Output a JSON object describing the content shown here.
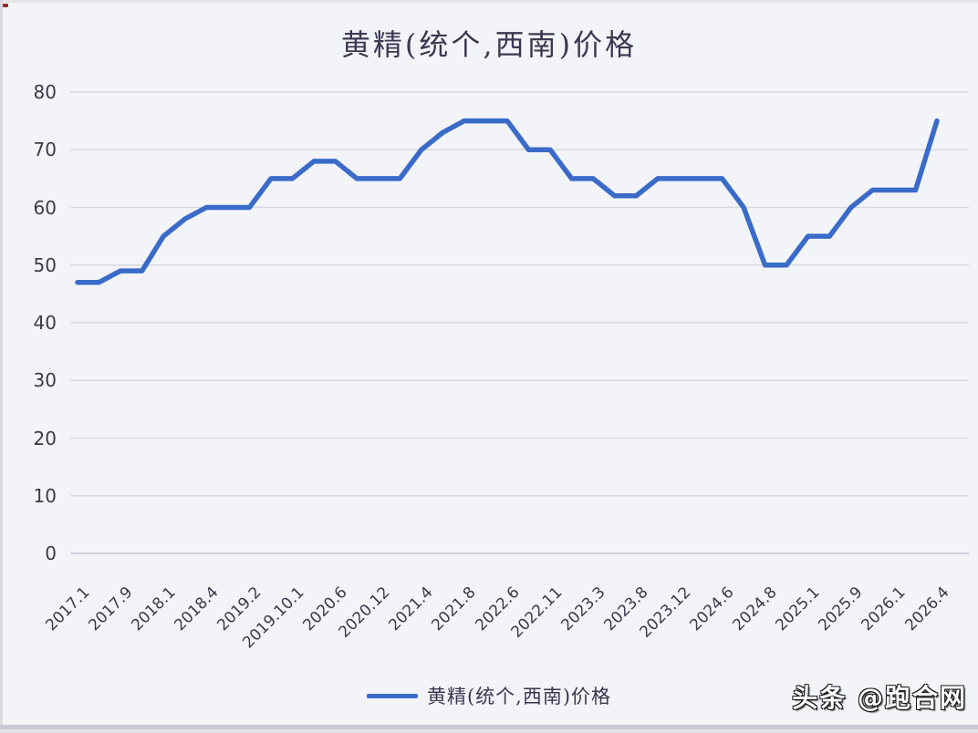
{
  "title": "黄精(统个,西南)价格",
  "legend": {
    "label": "黄精(统个,西南)价格"
  },
  "watermark": "头条 @跑合网",
  "colors": {
    "line": "#3A6BC9",
    "grid": "#D8DAE2",
    "grid_zero": "#C6C9D4",
    "title": "#3D3751",
    "axis_text": "#3A3A4A",
    "legend_text": "#3B3650",
    "background": "#F3F4F8"
  },
  "chart_data": {
    "type": "line",
    "title": "黄精(统个,西南)价格",
    "series_name": "黄精(统个,西南)价格",
    "x_tick_labels": [
      "2017.1",
      "2017.9",
      "2018.1",
      "2018.4",
      "2019.2",
      "2019.10.1",
      "2020.6",
      "2020.12",
      "2021.4",
      "2021.8",
      "2022.6",
      "2022.11",
      "2023.3",
      "2023.8",
      "2023.12",
      "2024.6",
      "2024.8",
      "2025.1",
      "2025.9",
      "2026.1",
      "2026.4"
    ],
    "points_per_tick": 2,
    "values": [
      47,
      47,
      49,
      49,
      55,
      58,
      60,
      60,
      60,
      65,
      65,
      68,
      68,
      65,
      65,
      65,
      70,
      73,
      75,
      75,
      75,
      70,
      70,
      65,
      65,
      62,
      62,
      65,
      65,
      65,
      65,
      60,
      50,
      50,
      55,
      55,
      60,
      63,
      63,
      63,
      75
    ],
    "labeled_points": {
      "2017.1": 47,
      "2017.9": 49,
      "2018.1": 55,
      "2018.4": 60,
      "2019.2": 60,
      "2019.10.1": 65,
      "2020.6": 68,
      "2020.12": 65,
      "2021.4": 70,
      "2021.8": 75,
      "2022.6": 75,
      "2022.11": 70,
      "2023.3": 65,
      "2023.8": 62,
      "2023.12": 65,
      "2024.6": 65,
      "2024.8": 50,
      "2025.1": 55,
      "2025.9": 60,
      "2026.1": 63,
      "2026.4": 75
    },
    "ylim": [
      0,
      80
    ],
    "y_ticks": [
      0,
      10,
      20,
      30,
      40,
      50,
      60,
      70,
      80
    ],
    "grid": "horizontal",
    "legend_position": "bottom",
    "x_label_rotation_deg": 45
  }
}
